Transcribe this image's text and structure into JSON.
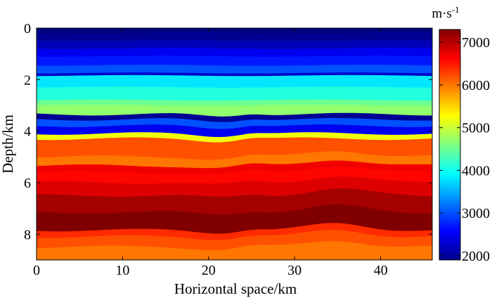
{
  "chart_data": {
    "type": "heatmap",
    "title": "",
    "xlabel": "Horizontal space/km",
    "ylabel": "Depth/km",
    "xlim": [
      0,
      46
    ],
    "ylim": [
      0,
      9
    ],
    "x_ticks": [
      0,
      10,
      20,
      30,
      40
    ],
    "y_ticks": [
      0,
      2,
      4,
      6,
      8
    ],
    "colorbar": {
      "title": "m·s",
      "title_exponent": "-1",
      "range": [
        1900,
        7300
      ],
      "ticks": [
        2000,
        3000,
        4000,
        5000,
        6000,
        7000
      ],
      "colormap": "jet"
    },
    "layers": [
      {
        "top_depth": 0.0,
        "velocity": 1900
      },
      {
        "top_depth": 0.2,
        "velocity": 2000
      },
      {
        "top_depth": 0.5,
        "velocity": 2200
      },
      {
        "top_depth": 0.8,
        "velocity": 2500
      },
      {
        "top_depth": 1.1,
        "velocity": 2700
      },
      {
        "top_depth": 1.45,
        "velocity": 3000
      },
      {
        "top_depth": 1.75,
        "velocity": 2300
      },
      {
        "top_depth": 1.85,
        "velocity": 3800
      },
      {
        "top_depth": 2.3,
        "velocity": 4100
      },
      {
        "top_depth": 2.8,
        "velocity": 4500
      },
      {
        "top_depth": 3.0,
        "velocity": 4700
      },
      {
        "top_depth": 3.35,
        "velocity": 2000
      },
      {
        "top_depth": 3.55,
        "velocity": 3000
      },
      {
        "top_depth": 3.8,
        "velocity": 2500
      },
      {
        "top_depth": 4.1,
        "velocity": 5200
      },
      {
        "top_depth": 4.3,
        "velocity": 6200
      },
      {
        "top_depth": 5.0,
        "velocity": 6000
      },
      {
        "top_depth": 5.35,
        "velocity": 6700
      },
      {
        "top_depth": 5.6,
        "velocity": 6600
      },
      {
        "top_depth": 6.0,
        "velocity": 6800
      },
      {
        "top_depth": 6.5,
        "velocity": 7100
      },
      {
        "top_depth": 7.15,
        "velocity": 7300
      },
      {
        "top_depth": 7.85,
        "velocity": 6400
      },
      {
        "top_depth": 8.1,
        "velocity": 6200
      },
      {
        "top_depth": 8.5,
        "velocity": 6000
      }
    ]
  }
}
